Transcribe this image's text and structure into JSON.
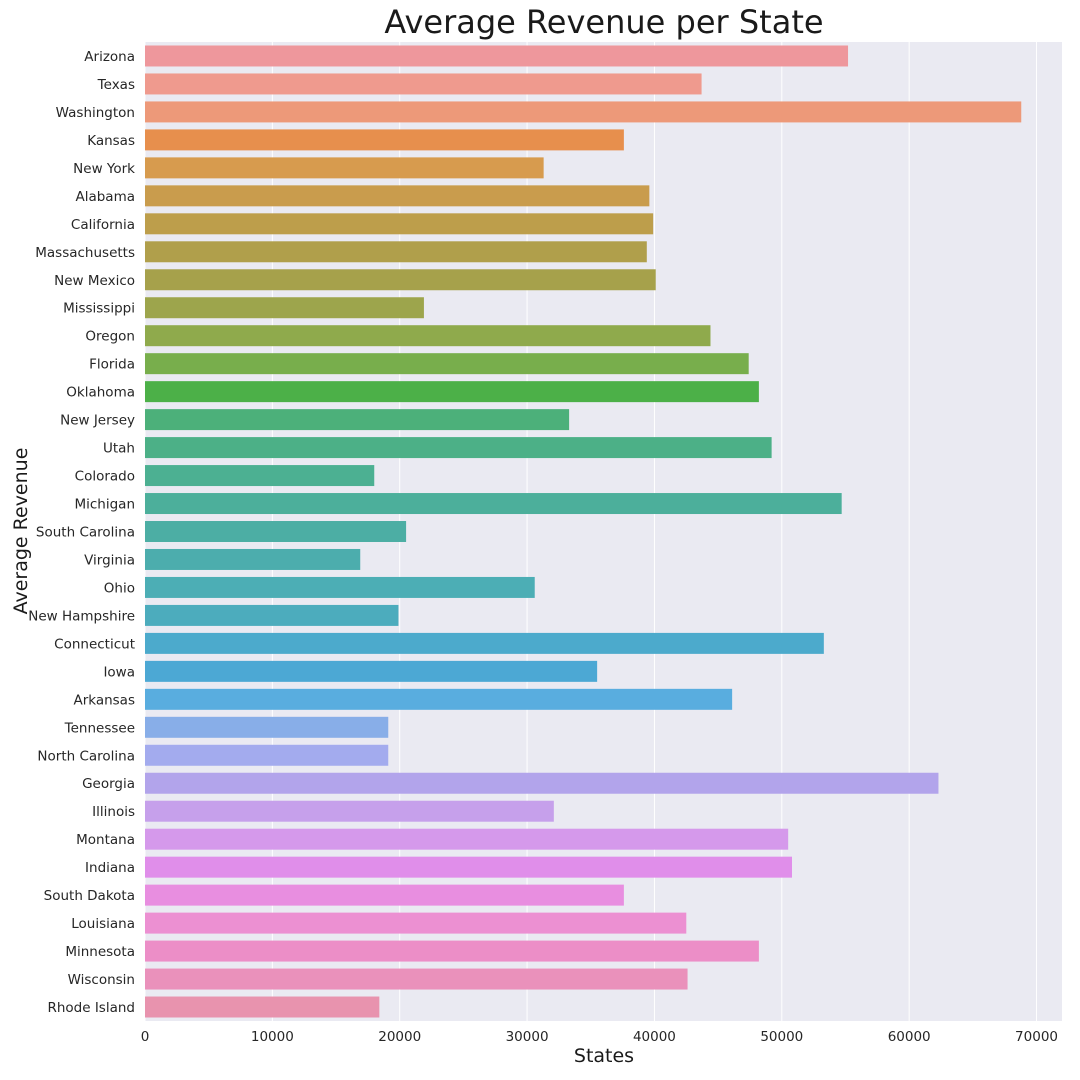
{
  "chart_data": {
    "type": "bar",
    "orientation": "horizontal",
    "title": "Average Revenue per State",
    "xlabel": "States",
    "ylabel": "Average Revenue",
    "xlim": [
      0,
      72000
    ],
    "xticks": [
      0,
      10000,
      20000,
      30000,
      40000,
      50000,
      60000,
      70000
    ],
    "grid": true,
    "background": "#eaeaf2",
    "categories": [
      "Arizona",
      "Texas",
      "Washington",
      "Kansas",
      "New York",
      "Alabama",
      "California",
      "Massachusetts",
      "New Mexico",
      "Mississippi",
      "Oregon",
      "Florida",
      "Oklahoma",
      "New Jersey",
      "Utah",
      "Colorado",
      "Michigan",
      "South Carolina",
      "Virginia",
      "Ohio",
      "New Hampshire",
      "Connecticut",
      "Iowa",
      "Arkansas",
      "Tennessee",
      "North Carolina",
      "Georgia",
      "Illinois",
      "Montana",
      "Indiana",
      "South Dakota",
      "Louisiana",
      "Minnesota",
      "Wisconsin",
      "Rhode Island"
    ],
    "values": [
      55200,
      43700,
      68800,
      37600,
      31300,
      39600,
      39900,
      39400,
      40100,
      21900,
      44400,
      47400,
      48200,
      33300,
      49200,
      18000,
      54700,
      20500,
      16900,
      30600,
      19900,
      53300,
      35500,
      46100,
      19100,
      19100,
      62300,
      32100,
      50500,
      50800,
      37600,
      42500,
      48200,
      42600,
      18400
    ],
    "colors": [
      "#ee979c",
      "#ef9a8e",
      "#ed9979",
      "#e78f4d",
      "#d79b4e",
      "#c99c4d",
      "#bd9e4b",
      "#b09f4b",
      "#a6a14b",
      "#9da54c",
      "#8faa4c",
      "#78ae4c",
      "#4cb048",
      "#4cb07a",
      "#4cb087",
      "#4cb092",
      "#4caf9b",
      "#4caea4",
      "#4cadad",
      "#4caeb5",
      "#4cacbd",
      "#4caacc",
      "#4ca8d4",
      "#59addf",
      "#88aee8",
      "#a3abee",
      "#b2a4eb",
      "#c6a0eb",
      "#d599eb",
      "#e08eea",
      "#e88ee0",
      "#ec90d2",
      "#ec8ec7",
      "#ea91bb",
      "#e893ae"
    ]
  }
}
